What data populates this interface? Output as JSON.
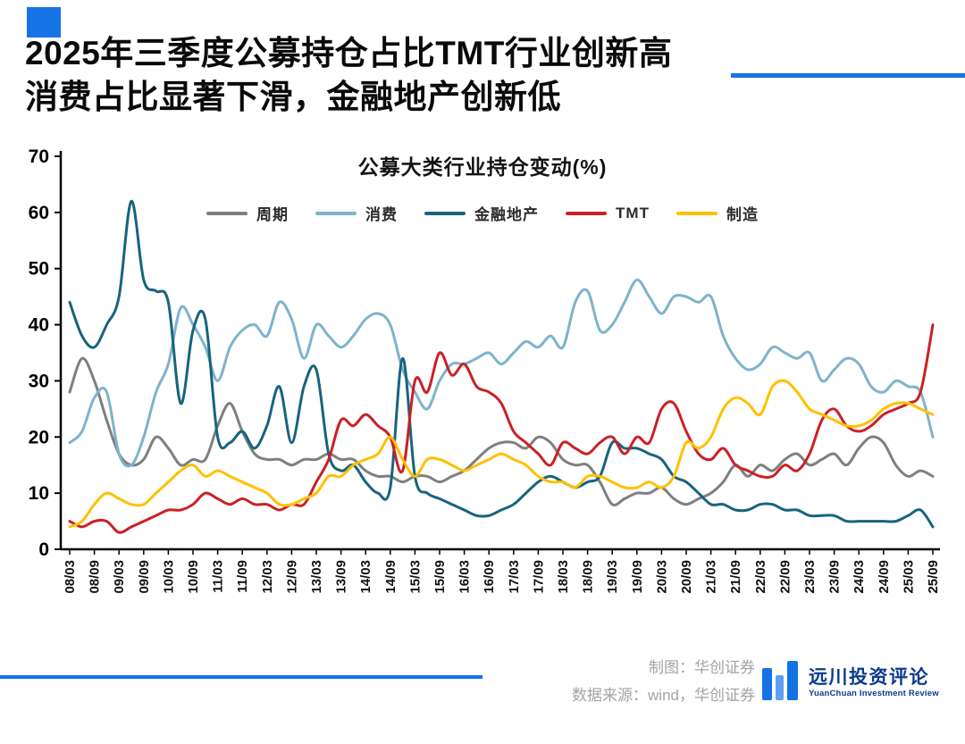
{
  "page": {
    "title_line1": "2025年三季度公募持仓占比TMT行业创新高",
    "title_line2": "消费占比显著下滑，金融地产创新低"
  },
  "footer": {
    "credit_line1": "制图：华创证券",
    "credit_line2": "数据来源：wind，华创证券",
    "logo_text": "远川投资评论",
    "logo_subtext": "YuanChuan Investment Review"
  },
  "colors": {
    "accent_blue": "#1673E6",
    "accent_blue_light": "#5EA0F2",
    "cycle": "#7F7F7F",
    "consumer": "#7EB3CC",
    "financial": "#17647E",
    "tmt": "#CB2026",
    "manufacturing": "#FFC000",
    "axis": "#000000"
  },
  "chart_data": {
    "type": "line",
    "title": "公募大类行业持仓变动(%)",
    "ylim": [
      0,
      70
    ],
    "yticks": [
      0,
      10,
      20,
      30,
      40,
      50,
      60,
      70
    ],
    "grid": false,
    "legend_position": "top",
    "tick_every": 2,
    "x": [
      "08/03",
      "08/06",
      "08/09",
      "08/12",
      "09/03",
      "09/06",
      "09/09",
      "09/12",
      "10/03",
      "10/06",
      "10/09",
      "10/12",
      "11/03",
      "11/06",
      "11/09",
      "11/12",
      "12/03",
      "12/06",
      "12/09",
      "12/12",
      "13/03",
      "13/06",
      "13/09",
      "13/12",
      "14/03",
      "14/06",
      "14/09",
      "14/12",
      "15/03",
      "15/06",
      "15/09",
      "15/12",
      "16/03",
      "16/06",
      "16/09",
      "16/12",
      "17/03",
      "17/06",
      "17/09",
      "17/12",
      "18/03",
      "18/06",
      "18/09",
      "18/12",
      "19/03",
      "19/06",
      "19/09",
      "19/12",
      "20/03",
      "20/06",
      "20/09",
      "20/12",
      "21/03",
      "21/06",
      "21/09",
      "21/12",
      "22/03",
      "22/06",
      "22/09",
      "22/12",
      "23/03",
      "23/06",
      "23/09",
      "23/12",
      "24/03",
      "24/06",
      "24/09",
      "24/12",
      "25/03",
      "25/06",
      "25/09"
    ],
    "series": [
      {
        "name": "周期",
        "color_key": "cycle",
        "values": [
          28,
          34,
          30,
          23,
          17,
          15,
          16,
          20,
          18,
          15,
          16,
          16,
          22,
          26,
          21,
          17,
          16,
          16,
          15,
          16,
          16,
          17,
          16,
          16,
          14,
          13,
          13,
          12,
          13,
          13,
          12,
          13,
          14,
          16,
          18,
          19,
          19,
          18,
          20,
          19,
          16,
          15,
          15,
          12,
          8,
          9,
          10,
          10,
          11,
          9,
          8,
          9,
          10,
          12,
          15,
          13,
          15,
          14,
          16,
          17,
          15,
          16,
          17,
          15,
          18,
          20,
          19,
          15,
          13,
          14,
          13
        ]
      },
      {
        "name": "消费",
        "color_key": "consumer",
        "values": [
          19,
          21,
          27,
          28,
          17,
          15,
          20,
          28,
          33,
          43,
          40,
          36,
          30,
          36,
          39,
          40,
          38,
          44,
          41,
          34,
          40,
          38,
          36,
          38,
          41,
          42,
          40,
          32,
          28,
          25,
          30,
          33,
          33,
          34,
          35,
          33,
          35,
          37,
          36,
          38,
          36,
          44,
          46,
          39,
          40,
          44,
          48,
          45,
          42,
          45,
          45,
          44,
          45,
          38,
          34,
          32,
          33,
          36,
          35,
          34,
          35,
          30,
          32,
          34,
          33,
          29,
          28,
          30,
          29,
          28,
          20
        ]
      },
      {
        "name": "金融地产",
        "color_key": "financial",
        "values": [
          44,
          38,
          36,
          40,
          45,
          62,
          48,
          46,
          44,
          26,
          39,
          41,
          20,
          19,
          21,
          18,
          22,
          29,
          19,
          29,
          32,
          17,
          14,
          15,
          12,
          10,
          11,
          34,
          13,
          10,
          9,
          8,
          7,
          6,
          6,
          7,
          8,
          10,
          12,
          13,
          12,
          11,
          12,
          13,
          19,
          18,
          18,
          17,
          16,
          13,
          12,
          10,
          8,
          8,
          7,
          7,
          8,
          8,
          7,
          7,
          6,
          6,
          6,
          5,
          5,
          5,
          5,
          5,
          6,
          7,
          4
        ]
      },
      {
        "name": "TMT",
        "color_key": "tmt",
        "values": [
          5,
          4,
          5,
          5,
          3,
          4,
          5,
          6,
          7,
          7,
          8,
          10,
          9,
          8,
          9,
          8,
          8,
          7,
          8,
          8,
          12,
          16,
          23,
          22,
          24,
          22,
          20,
          14,
          30,
          28,
          35,
          31,
          33,
          29,
          28,
          26,
          21,
          19,
          17,
          15,
          19,
          18,
          17,
          19,
          20,
          17,
          20,
          19,
          25,
          26,
          21,
          17,
          16,
          18,
          15,
          14,
          13,
          13,
          15,
          14,
          17,
          23,
          25,
          22,
          21,
          22,
          24,
          25,
          26,
          28,
          40
        ]
      },
      {
        "name": "制造",
        "color_key": "manufacturing",
        "values": [
          4,
          5,
          8,
          10,
          9,
          8,
          8,
          10,
          12,
          14,
          15,
          13,
          14,
          13,
          12,
          11,
          10,
          8,
          8,
          9,
          10,
          13,
          13,
          15,
          16,
          17,
          20,
          16,
          13,
          16,
          16,
          15,
          14,
          15,
          16,
          17,
          16,
          15,
          13,
          12,
          12,
          11,
          13,
          13,
          12,
          11,
          11,
          12,
          11,
          13,
          19,
          18,
          20,
          25,
          27,
          26,
          24,
          29,
          30,
          28,
          25,
          24,
          23,
          22,
          22,
          23,
          25,
          26,
          26,
          25,
          24
        ]
      }
    ]
  }
}
